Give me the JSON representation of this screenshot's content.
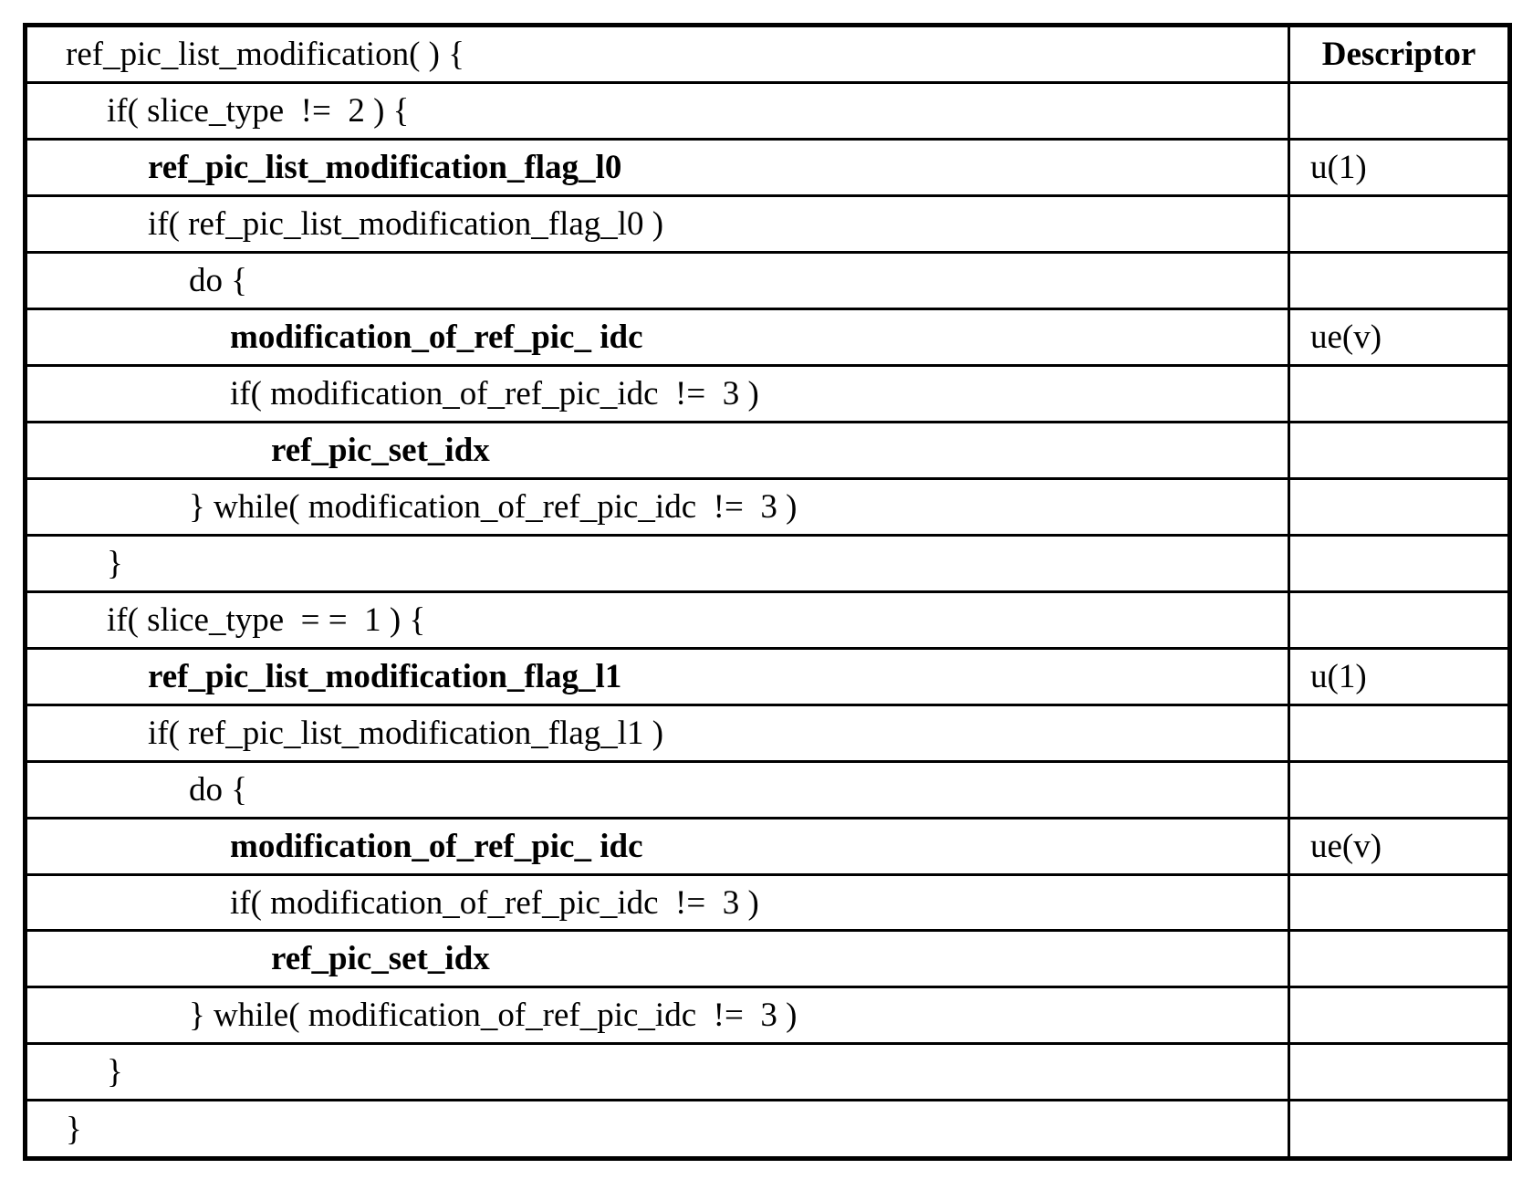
{
  "colors": {
    "border": "#000000",
    "text": "#000000",
    "background": "#ffffff"
  },
  "header_row": {
    "syntax": "ref_pic_list_modification( ) {",
    "descriptor_label": "Descriptor"
  },
  "rows": [
    {
      "syntax": "if( slice_type  !=  2 ) {",
      "indent": 1,
      "bold": false,
      "descriptor": ""
    },
    {
      "syntax": "ref_pic_list_modification_flag_l0",
      "indent": 2,
      "bold": true,
      "descriptor": "u(1)"
    },
    {
      "syntax": "if( ref_pic_list_modification_flag_l0 )",
      "indent": 2,
      "bold": false,
      "descriptor": ""
    },
    {
      "syntax": "do {",
      "indent": 3,
      "bold": false,
      "descriptor": ""
    },
    {
      "syntax": "modification_of_ref_pic_ idc",
      "indent": 4,
      "bold": true,
      "descriptor": "ue(v)"
    },
    {
      "syntax": "if( modification_of_ref_pic_idc  !=  3 )",
      "indent": 4,
      "bold": false,
      "descriptor": ""
    },
    {
      "syntax": "ref_pic_set_idx",
      "indent": 5,
      "bold": true,
      "descriptor": ""
    },
    {
      "syntax": "} while( modification_of_ref_pic_idc  !=  3 )",
      "indent": 3,
      "bold": false,
      "descriptor": ""
    },
    {
      "syntax": "}",
      "indent": 1,
      "bold": false,
      "descriptor": ""
    },
    {
      "syntax": "if( slice_type  = =  1 ) {",
      "indent": 1,
      "bold": false,
      "descriptor": ""
    },
    {
      "syntax": "ref_pic_list_modification_flag_l1",
      "indent": 2,
      "bold": true,
      "descriptor": "u(1)"
    },
    {
      "syntax": "if( ref_pic_list_modification_flag_l1 )",
      "indent": 2,
      "bold": false,
      "descriptor": ""
    },
    {
      "syntax": "do {",
      "indent": 3,
      "bold": false,
      "descriptor": ""
    },
    {
      "syntax": "modification_of_ref_pic_ idc",
      "indent": 4,
      "bold": true,
      "descriptor": "ue(v)"
    },
    {
      "syntax": "if( modification_of_ref_pic_idc  !=  3 )",
      "indent": 4,
      "bold": false,
      "descriptor": ""
    },
    {
      "syntax": "ref_pic_set_idx",
      "indent": 5,
      "bold": true,
      "descriptor": ""
    },
    {
      "syntax": "} while( modification_of_ref_pic_idc  !=  3 )",
      "indent": 3,
      "bold": false,
      "descriptor": ""
    },
    {
      "syntax": "}",
      "indent": 1,
      "bold": false,
      "descriptor": ""
    },
    {
      "syntax": "}",
      "indent": 0,
      "bold": false,
      "descriptor": ""
    }
  ]
}
